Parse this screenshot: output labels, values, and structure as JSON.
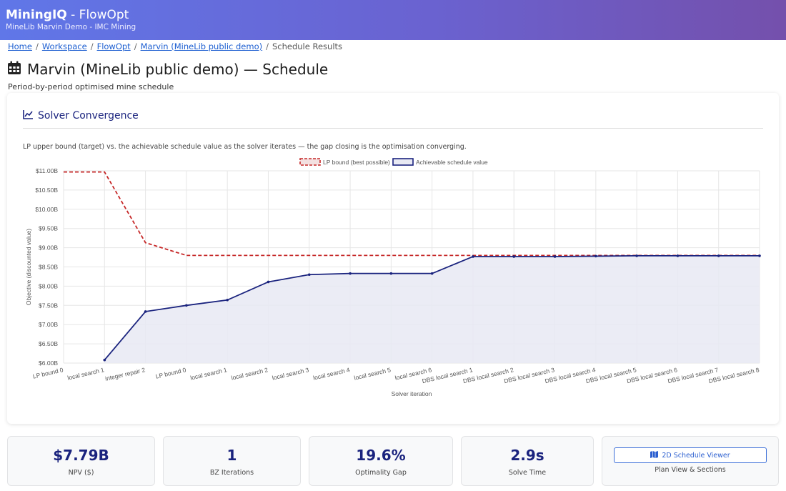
{
  "header": {
    "brand": "MiningIQ",
    "product": " - FlowOpt",
    "subtitle": "MineLib Marvin Demo - IMC Mining"
  },
  "breadcrumb": [
    "Home",
    "Workspace",
    "FlowOpt",
    "Marvin (MineLib public demo)",
    "Schedule Results"
  ],
  "page": {
    "title": "Marvin (MineLib public demo) — Schedule",
    "subtitle": "Period-by-period optimised mine schedule",
    "icon": "calendar-icon"
  },
  "card": {
    "title": "Solver Convergence",
    "icon": "line-chart-icon",
    "description": "LP upper bound (target) vs. the achievable schedule value as the solver iterates — the gap closing is the optimisation converging."
  },
  "chart_data": {
    "type": "line",
    "xlabel": "Solver iteration",
    "ylabel": "Objective (discounted value)",
    "ylim": [
      6.0,
      11.0
    ],
    "yticks": [
      "$6.00B",
      "$6.50B",
      "$7.00B",
      "$7.50B",
      "$8.00B",
      "$8.50B",
      "$9.00B",
      "$9.50B",
      "$10.00B",
      "$10.50B",
      "$11.00B"
    ],
    "grid": true,
    "legend_position": "top",
    "categories": [
      "LP bound 0",
      "local search 1",
      "integer repair 2",
      "LP bound 0",
      "local search 1",
      "local search 2",
      "local search 3",
      "local search 4",
      "local search 5",
      "local search 6",
      "DBS local search 1",
      "DBS local search 2",
      "DBS local search 3",
      "DBS local search 4",
      "DBS local search 5",
      "DBS local search 6",
      "DBS local search 7",
      "DBS local search 8"
    ],
    "series": [
      {
        "name": "LP bound (best possible)",
        "color": "#c62828",
        "style": "dashed",
        "values": [
          10.97,
          10.97,
          9.13,
          8.8,
          8.8,
          8.8,
          8.8,
          8.8,
          8.8,
          8.8,
          8.8,
          8.8,
          8.8,
          8.8,
          8.8,
          8.8,
          8.8,
          8.8
        ]
      },
      {
        "name": "Achievable schedule value",
        "color": "#1a237e",
        "style": "solid",
        "fill": "#e8e9f3",
        "values": [
          null,
          6.08,
          7.34,
          7.5,
          7.64,
          8.11,
          8.3,
          8.33,
          8.33,
          8.33,
          8.77,
          8.77,
          8.77,
          8.78,
          8.79,
          8.79,
          8.79,
          8.79
        ]
      }
    ]
  },
  "stats": [
    {
      "value": "$7.79B",
      "label": "NPV ($)"
    },
    {
      "value": "1",
      "label": "BZ Iterations"
    },
    {
      "value": "19.6%",
      "label": "Optimality Gap"
    },
    {
      "value": "2.9s",
      "label": "Solve Time"
    }
  ],
  "viewer": {
    "button_label": "2D Schedule Viewer",
    "icon": "map-icon",
    "label": "Plan View & Sections"
  }
}
